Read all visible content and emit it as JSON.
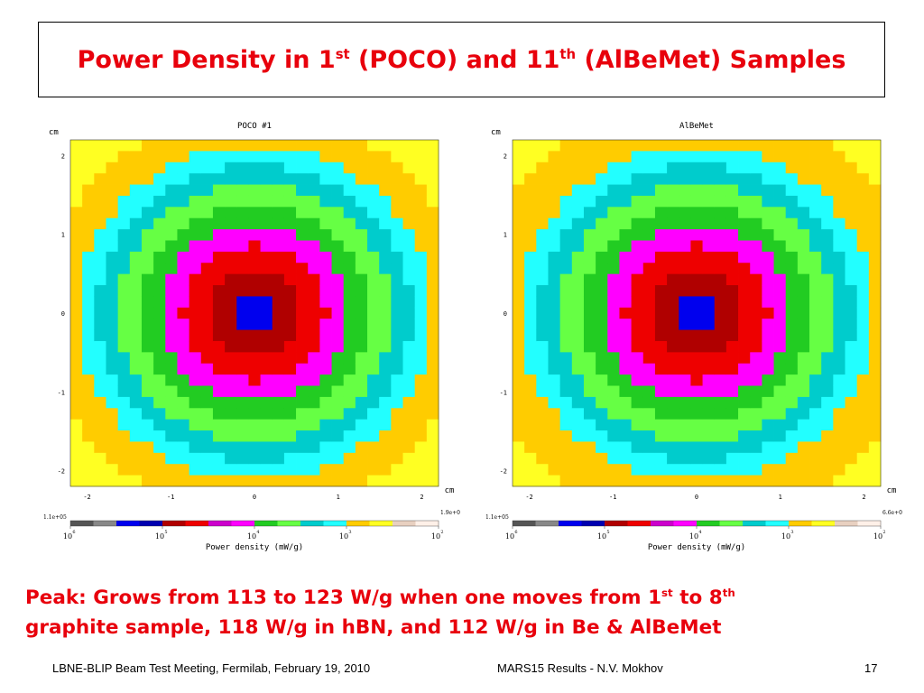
{
  "slide": {
    "title_parts": {
      "a": "Power Density in 1",
      "sup1": "st",
      "b": " (POCO) and 11",
      "sup2": "th",
      "c": " (AlBeMet) Samples"
    },
    "caption_parts": {
      "l1a": "Peak: Grows from 113 to 123 W/g when one moves from 1",
      "l1sup1": "st",
      "l1b": " to 8",
      "l1sup2": "th",
      "l2": "graphite sample, 118 W/g in hBN, and 112 W/g in Be & AlBeMet"
    },
    "footer": {
      "left": "LBNE-BLIP Beam Test Meeting, Fermilab, February 19, 2010",
      "center": "MARS15 Results -  N.V. Mokhov",
      "page": "17"
    }
  },
  "chart_data": [
    {
      "type": "heatmap",
      "title": "POCO #1",
      "xlabel": "cm",
      "ylabel": "cm",
      "xlim": [
        -2.2,
        2.2
      ],
      "ylim": [
        -2.2,
        2.2
      ],
      "x_ticks": [
        "-2",
        "-1",
        "0",
        "1",
        "2"
      ],
      "y_ticks": [
        "2",
        "1",
        "0",
        "-1",
        "-2"
      ],
      "colorbar": {
        "label": "Power density (mW/g)",
        "max_label": "1.1e+05",
        "min_label": "1.9e+02",
        "tick_labels": [
          "10",
          "10",
          "10",
          "10",
          "10"
        ],
        "tick_exponents": [
          "6",
          "5",
          "4",
          "3",
          "2"
        ],
        "colors": [
          "#555555",
          "#888888",
          "#0000ee",
          "#0000b0",
          "#b00000",
          "#ee0000",
          "#cc00cc",
          "#ff00ff",
          "#22cc22",
          "#66ff44",
          "#00cccc",
          "#22ffff",
          "#ffcc00",
          "#ffff22",
          "#e8d0c0",
          "#fff0e8"
        ]
      },
      "peak_mw_g": 110000,
      "min_mw_g": 190,
      "radius_factor_x": 1.0,
      "radius_factor_y": 1.0,
      "level_radii": [
        0.28,
        0.52,
        0.86,
        1.12,
        1.38,
        1.62,
        1.87,
        2.12,
        2.55
      ],
      "level_colors": [
        "#0000ee",
        "#b00000",
        "#ee0000",
        "#ff00ff",
        "#22cc22",
        "#66ff44",
        "#00cccc",
        "#22ffff",
        "#ffcc00",
        "#ffff22"
      ]
    },
    {
      "type": "heatmap",
      "title": "AlBeMet",
      "xlabel": "cm",
      "ylabel": "cm",
      "xlim": [
        -2.2,
        2.2
      ],
      "ylim": [
        -2.2,
        2.2
      ],
      "x_ticks": [
        "-2",
        "-1",
        "0",
        "1",
        "2"
      ],
      "y_ticks": [
        "2",
        "1",
        "0",
        "-1",
        "-2"
      ],
      "colorbar": {
        "label": "Power density (mW/g)",
        "max_label": "1.1e+05",
        "min_label": "6.6e+02",
        "tick_labels": [
          "10",
          "10",
          "10",
          "10",
          "10"
        ],
        "tick_exponents": [
          "6",
          "5",
          "4",
          "3",
          "2"
        ],
        "colors": [
          "#555555",
          "#888888",
          "#0000ee",
          "#0000b0",
          "#b00000",
          "#ee0000",
          "#cc00cc",
          "#ff00ff",
          "#22cc22",
          "#66ff44",
          "#00cccc",
          "#22ffff",
          "#ffcc00",
          "#ffff22",
          "#e8d0c0",
          "#fff0e8"
        ]
      },
      "peak_mw_g": 110000,
      "min_mw_g": 660,
      "radius_factor_x": 1.0,
      "radius_factor_y": 1.0,
      "level_radii": [
        0.28,
        0.52,
        0.86,
        1.12,
        1.38,
        1.62,
        1.87,
        2.12,
        2.65
      ],
      "level_colors": [
        "#0000ee",
        "#b00000",
        "#ee0000",
        "#ff00ff",
        "#22cc22",
        "#66ff44",
        "#00cccc",
        "#22ffff",
        "#ffcc00",
        "#ffff22"
      ]
    }
  ]
}
